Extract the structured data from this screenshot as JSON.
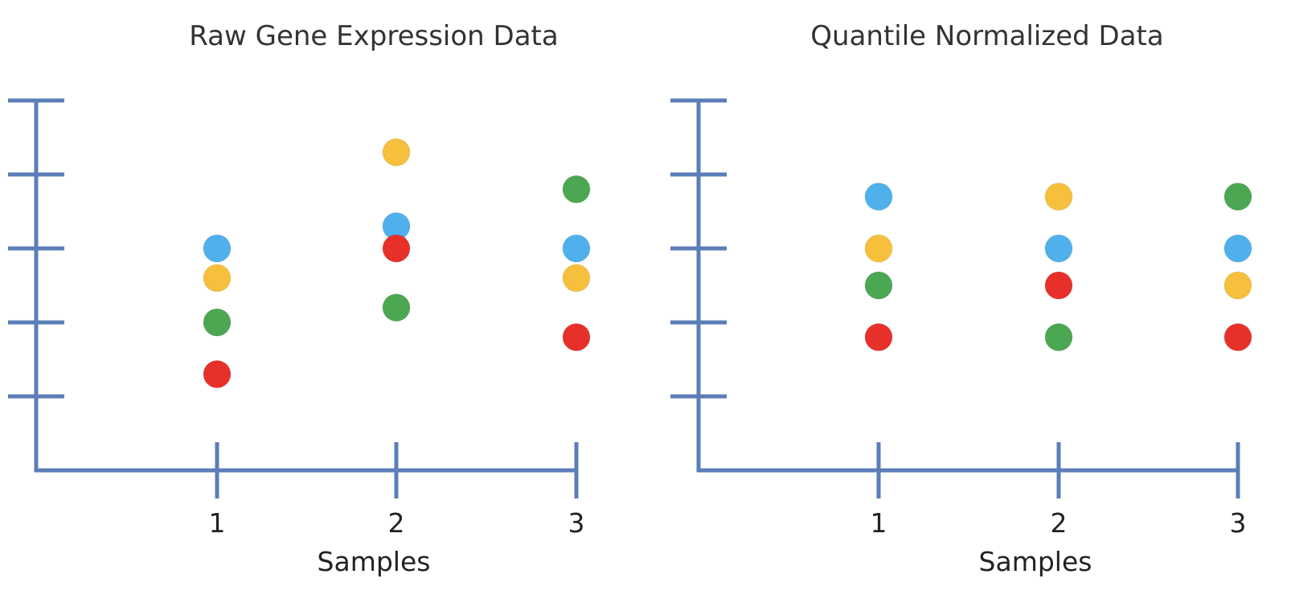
{
  "chart_data": [
    {
      "type": "scatter",
      "title": "Raw Gene Expression Data",
      "xlabel": "Samples",
      "ylabel": "",
      "categories": [
        "1",
        "2",
        "3"
      ],
      "ylim": [
        0,
        5
      ],
      "y_tick_count": 5,
      "y_tick_labels_shown": false,
      "series": [
        {
          "color": "#4FB0EC",
          "values": [
            3.0,
            3.3,
            3.0
          ]
        },
        {
          "color": "#F6C03D",
          "values": [
            2.6,
            4.3,
            2.6
          ]
        },
        {
          "color": "#4BA752",
          "values": [
            2.0,
            2.2,
            3.8
          ]
        },
        {
          "color": "#E8302A",
          "values": [
            1.3,
            3.0,
            1.8
          ]
        }
      ]
    },
    {
      "type": "scatter",
      "title": "Quantile Normalized Data",
      "xlabel": "Samples",
      "ylabel": "",
      "categories": [
        "1",
        "2",
        "3"
      ],
      "ylim": [
        0,
        5
      ],
      "y_tick_count": 5,
      "y_tick_labels_shown": false,
      "series": [
        {
          "color": "#4FB0EC",
          "values": [
            3.7,
            3.0,
            3.0
          ]
        },
        {
          "color": "#F6C03D",
          "values": [
            3.0,
            3.7,
            2.5
          ]
        },
        {
          "color": "#4BA752",
          "values": [
            2.5,
            1.8,
            3.7
          ]
        },
        {
          "color": "#E8302A",
          "values": [
            1.8,
            2.5,
            1.8
          ]
        }
      ]
    }
  ],
  "colors": {
    "axis": "#5B7DB8",
    "text": "#222222"
  }
}
